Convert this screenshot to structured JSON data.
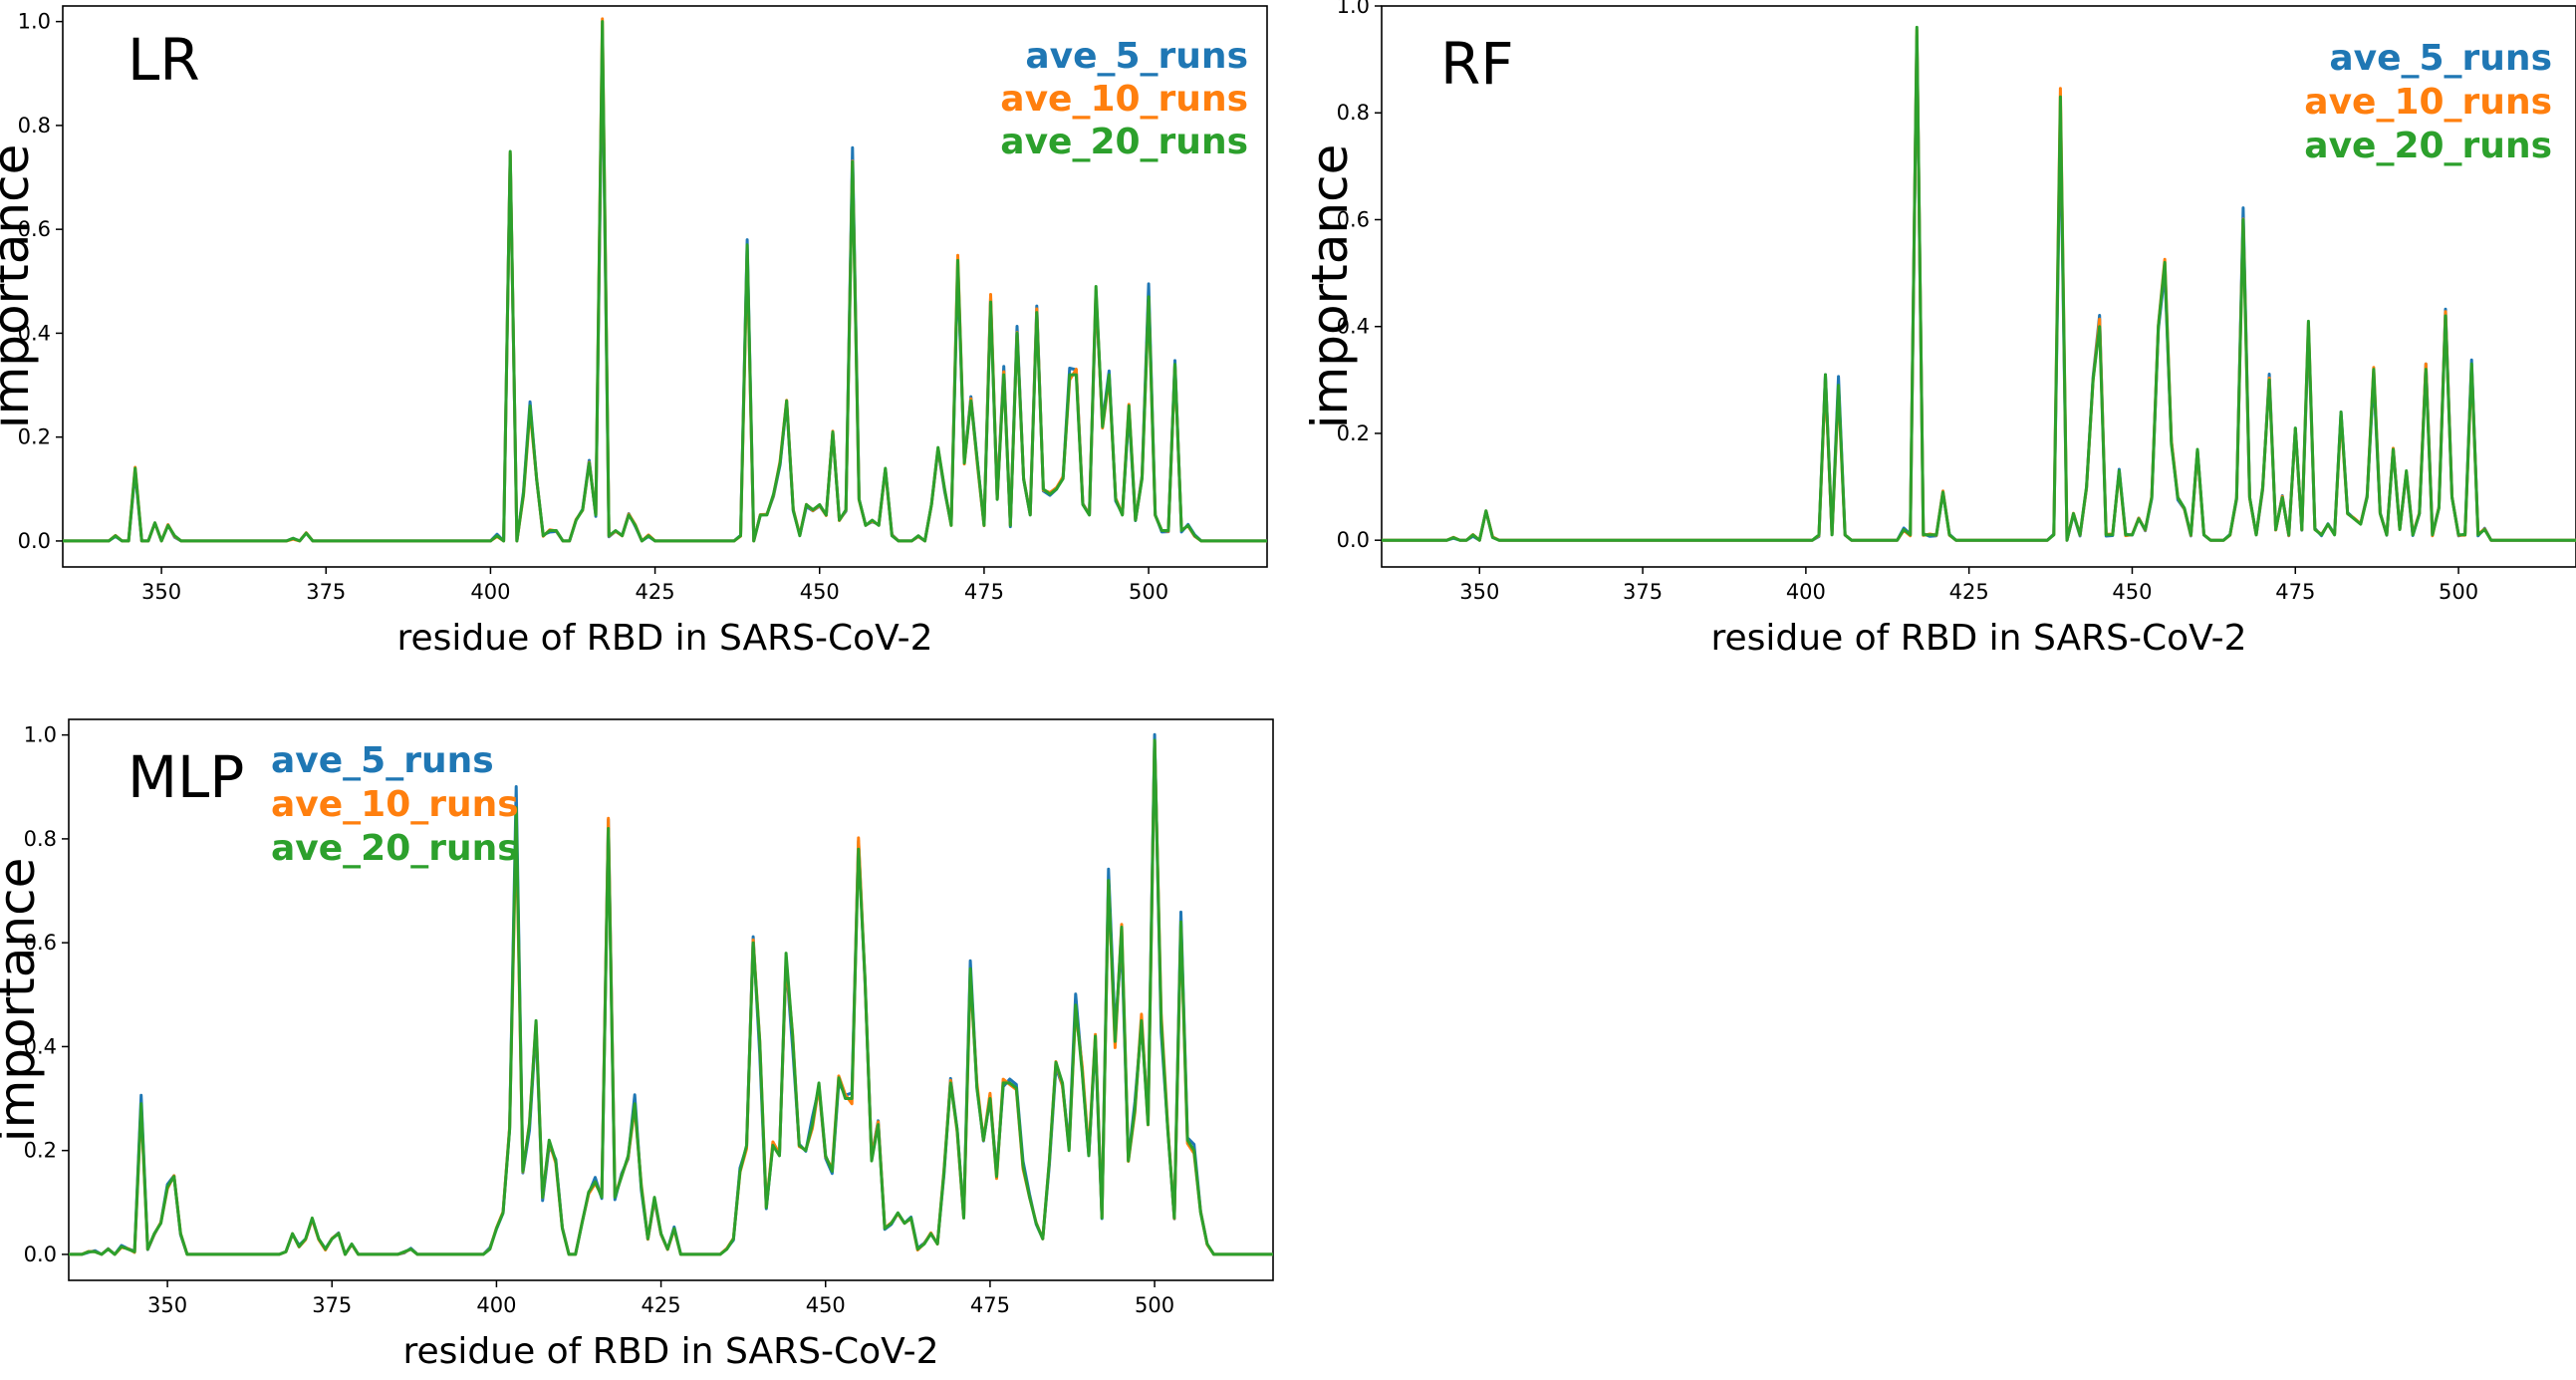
{
  "colors": {
    "ave_5_runs": "#1f77b4",
    "ave_10_runs": "#ff7f0e",
    "ave_20_runs": "#2ca02c"
  },
  "chart_data": [
    {
      "id": "lr",
      "type": "line",
      "title": "LR",
      "xlabel": "residue of RBD in SARS-CoV-2",
      "ylabel": "importance",
      "xlim": [
        335,
        518
      ],
      "ylim": [
        -0.05,
        1.03
      ],
      "xticks": [
        350,
        375,
        400,
        425,
        450,
        475,
        500
      ],
      "yticks": [
        0.0,
        0.2,
        0.4,
        0.6,
        0.8,
        1.0
      ],
      "legend_position": "top-right",
      "baseline_peaks": [
        [
          343,
          0.01
        ],
        [
          346,
          0.14
        ],
        [
          349,
          0.035
        ],
        [
          351,
          0.03
        ],
        [
          352,
          0.01
        ],
        [
          370,
          0.005
        ],
        [
          372,
          0.015
        ],
        [
          401,
          0.01
        ],
        [
          403,
          0.75
        ],
        [
          405,
          0.09
        ],
        [
          406,
          0.26
        ],
        [
          407,
          0.12
        ],
        [
          408,
          0.01
        ],
        [
          409,
          0.02
        ],
        [
          410,
          0.02
        ],
        [
          413,
          0.04
        ],
        [
          414,
          0.06
        ],
        [
          415,
          0.15
        ],
        [
          416,
          0.05
        ],
        [
          417,
          1.0
        ],
        [
          418,
          0.01
        ],
        [
          419,
          0.02
        ],
        [
          420,
          0.01
        ],
        [
          421,
          0.05
        ],
        [
          422,
          0.03
        ],
        [
          424,
          0.01
        ],
        [
          438,
          0.01
        ],
        [
          439,
          0.57
        ],
        [
          441,
          0.05
        ],
        [
          442,
          0.05
        ],
        [
          443,
          0.09
        ],
        [
          444,
          0.15
        ],
        [
          445,
          0.27
        ],
        [
          446,
          0.06
        ],
        [
          447,
          0.01
        ],
        [
          448,
          0.07
        ],
        [
          449,
          0.06
        ],
        [
          450,
          0.07
        ],
        [
          451,
          0.05
        ],
        [
          452,
          0.21
        ],
        [
          453,
          0.04
        ],
        [
          454,
          0.06
        ],
        [
          455,
          0.73
        ],
        [
          456,
          0.08
        ],
        [
          457,
          0.03
        ],
        [
          458,
          0.04
        ],
        [
          459,
          0.03
        ],
        [
          460,
          0.14
        ],
        [
          461,
          0.01
        ],
        [
          465,
          0.01
        ],
        [
          467,
          0.07
        ],
        [
          468,
          0.18
        ],
        [
          469,
          0.1
        ],
        [
          470,
          0.03
        ],
        [
          471,
          0.54
        ],
        [
          472,
          0.15
        ],
        [
          473,
          0.27
        ],
        [
          474,
          0.15
        ],
        [
          475,
          0.03
        ],
        [
          476,
          0.46
        ],
        [
          477,
          0.08
        ],
        [
          478,
          0.32
        ],
        [
          479,
          0.03
        ],
        [
          480,
          0.4
        ],
        [
          481,
          0.12
        ],
        [
          482,
          0.05
        ],
        [
          483,
          0.44
        ],
        [
          484,
          0.1
        ],
        [
          485,
          0.09
        ],
        [
          486,
          0.1
        ],
        [
          487,
          0.12
        ],
        [
          488,
          0.32
        ],
        [
          489,
          0.32
        ],
        [
          490,
          0.07
        ],
        [
          491,
          0.05
        ],
        [
          492,
          0.49
        ],
        [
          493,
          0.22
        ],
        [
          494,
          0.32
        ],
        [
          495,
          0.08
        ],
        [
          496,
          0.05
        ],
        [
          497,
          0.26
        ],
        [
          498,
          0.04
        ],
        [
          499,
          0.12
        ],
        [
          500,
          0.47
        ],
        [
          501,
          0.05
        ],
        [
          502,
          0.02
        ],
        [
          503,
          0.02
        ],
        [
          504,
          0.34
        ],
        [
          505,
          0.02
        ],
        [
          506,
          0.03
        ],
        [
          507,
          0.01
        ]
      ],
      "series": [
        {
          "name": "ave_5_runs",
          "color": "#1f77b4"
        },
        {
          "name": "ave_10_runs",
          "color": "#ff7f0e"
        },
        {
          "name": "ave_20_runs",
          "color": "#2ca02c"
        }
      ]
    },
    {
      "id": "rf",
      "type": "line",
      "title": "RF",
      "xlabel": "residue of RBD in SARS-CoV-2",
      "ylabel": "importance",
      "xlim": [
        335,
        518
      ],
      "ylim": [
        -0.05,
        1.0
      ],
      "xticks": [
        350,
        375,
        400,
        425,
        450,
        475,
        500
      ],
      "yticks": [
        0.0,
        0.2,
        0.4,
        0.6,
        0.8,
        1.0
      ],
      "legend_position": "top-right",
      "baseline_peaks": [
        [
          346,
          0.005
        ],
        [
          349,
          0.01
        ],
        [
          351,
          0.055
        ],
        [
          352,
          0.005
        ],
        [
          402,
          0.01
        ],
        [
          403,
          0.31
        ],
        [
          404,
          0.01
        ],
        [
          405,
          0.29
        ],
        [
          406,
          0.01
        ],
        [
          415,
          0.02
        ],
        [
          416,
          0.01
        ],
        [
          417,
          0.96
        ],
        [
          418,
          0.01
        ],
        [
          419,
          0.01
        ],
        [
          420,
          0.01
        ],
        [
          421,
          0.09
        ],
        [
          422,
          0.01
        ],
        [
          438,
          0.01
        ],
        [
          439,
          0.83
        ],
        [
          441,
          0.05
        ],
        [
          442,
          0.01
        ],
        [
          443,
          0.1
        ],
        [
          444,
          0.3
        ],
        [
          445,
          0.4
        ],
        [
          446,
          0.01
        ],
        [
          447,
          0.01
        ],
        [
          448,
          0.13
        ],
        [
          449,
          0.01
        ],
        [
          450,
          0.01
        ],
        [
          451,
          0.04
        ],
        [
          452,
          0.02
        ],
        [
          453,
          0.08
        ],
        [
          454,
          0.4
        ],
        [
          455,
          0.52
        ],
        [
          456,
          0.18
        ],
        [
          457,
          0.08
        ],
        [
          458,
          0.06
        ],
        [
          459,
          0.01
        ],
        [
          460,
          0.17
        ],
        [
          461,
          0.01
        ],
        [
          465,
          0.01
        ],
        [
          466,
          0.08
        ],
        [
          467,
          0.6
        ],
        [
          468,
          0.08
        ],
        [
          469,
          0.01
        ],
        [
          470,
          0.1
        ],
        [
          471,
          0.3
        ],
        [
          472,
          0.02
        ],
        [
          473,
          0.08
        ],
        [
          474,
          0.01
        ],
        [
          475,
          0.21
        ],
        [
          476,
          0.02
        ],
        [
          477,
          0.41
        ],
        [
          478,
          0.02
        ],
        [
          479,
          0.01
        ],
        [
          480,
          0.03
        ],
        [
          481,
          0.01
        ],
        [
          482,
          0.24
        ],
        [
          483,
          0.05
        ],
        [
          484,
          0.04
        ],
        [
          485,
          0.03
        ],
        [
          486,
          0.08
        ],
        [
          487,
          0.32
        ],
        [
          488,
          0.05
        ],
        [
          489,
          0.01
        ],
        [
          490,
          0.17
        ],
        [
          491,
          0.02
        ],
        [
          492,
          0.13
        ],
        [
          493,
          0.01
        ],
        [
          494,
          0.05
        ],
        [
          495,
          0.32
        ],
        [
          496,
          0.01
        ],
        [
          497,
          0.06
        ],
        [
          498,
          0.42
        ],
        [
          499,
          0.08
        ],
        [
          500,
          0.01
        ],
        [
          501,
          0.01
        ],
        [
          502,
          0.33
        ],
        [
          503,
          0.01
        ],
        [
          504,
          0.02
        ],
        [
          505,
          0.0
        ]
      ],
      "series": [
        {
          "name": "ave_5_runs",
          "color": "#1f77b4"
        },
        {
          "name": "ave_10_runs",
          "color": "#ff7f0e"
        },
        {
          "name": "ave_20_runs",
          "color": "#2ca02c"
        }
      ]
    },
    {
      "id": "mlp",
      "type": "line",
      "title": "MLP",
      "xlabel": "residue of RBD in SARS-CoV-2",
      "ylabel": "importance",
      "xlim": [
        335,
        518
      ],
      "ylim": [
        -0.05,
        1.03
      ],
      "xticks": [
        350,
        375,
        400,
        425,
        450,
        475,
        500
      ],
      "yticks": [
        0.0,
        0.2,
        0.4,
        0.6,
        0.8,
        1.0
      ],
      "legend_position": "top-left",
      "baseline_peaks": [
        [
          338,
          0.005
        ],
        [
          339,
          0.005
        ],
        [
          340,
          0.0
        ],
        [
          341,
          0.01
        ],
        [
          342,
          0.0
        ],
        [
          343,
          0.015
        ],
        [
          344,
          0.01
        ],
        [
          345,
          0.005
        ],
        [
          346,
          0.29
        ],
        [
          347,
          0.01
        ],
        [
          348,
          0.04
        ],
        [
          349,
          0.06
        ],
        [
          350,
          0.13
        ],
        [
          351,
          0.15
        ],
        [
          352,
          0.04
        ],
        [
          353,
          0.0
        ],
        [
          368,
          0.005
        ],
        [
          369,
          0.04
        ],
        [
          370,
          0.015
        ],
        [
          371,
          0.03
        ],
        [
          372,
          0.07
        ],
        [
          373,
          0.03
        ],
        [
          374,
          0.01
        ],
        [
          375,
          0.03
        ],
        [
          376,
          0.04
        ],
        [
          377,
          0.0
        ],
        [
          378,
          0.02
        ],
        [
          379,
          0.0
        ],
        [
          386,
          0.005
        ],
        [
          387,
          0.01
        ],
        [
          388,
          0.0
        ],
        [
          399,
          0.01
        ],
        [
          400,
          0.05
        ],
        [
          401,
          0.08
        ],
        [
          402,
          0.24
        ],
        [
          403,
          0.86
        ],
        [
          404,
          0.16
        ],
        [
          405,
          0.25
        ],
        [
          406,
          0.45
        ],
        [
          407,
          0.11
        ],
        [
          408,
          0.22
        ],
        [
          409,
          0.18
        ],
        [
          410,
          0.05
        ],
        [
          411,
          0.0
        ],
        [
          412,
          0.0
        ],
        [
          413,
          0.06
        ],
        [
          414,
          0.12
        ],
        [
          415,
          0.14
        ],
        [
          416,
          0.11
        ],
        [
          417,
          0.82
        ],
        [
          418,
          0.11
        ],
        [
          419,
          0.15
        ],
        [
          420,
          0.19
        ],
        [
          421,
          0.29
        ],
        [
          422,
          0.13
        ],
        [
          423,
          0.03
        ],
        [
          424,
          0.11
        ],
        [
          425,
          0.04
        ],
        [
          426,
          0.01
        ],
        [
          427,
          0.05
        ],
        [
          428,
          0.0
        ],
        [
          435,
          0.01
        ],
        [
          436,
          0.03
        ],
        [
          437,
          0.16
        ],
        [
          438,
          0.21
        ],
        [
          439,
          0.6
        ],
        [
          440,
          0.41
        ],
        [
          441,
          0.09
        ],
        [
          442,
          0.21
        ],
        [
          443,
          0.19
        ],
        [
          444,
          0.58
        ],
        [
          445,
          0.42
        ],
        [
          446,
          0.21
        ],
        [
          447,
          0.2
        ],
        [
          448,
          0.25
        ],
        [
          449,
          0.33
        ],
        [
          450,
          0.19
        ],
        [
          451,
          0.16
        ],
        [
          452,
          0.34
        ],
        [
          453,
          0.3
        ],
        [
          454,
          0.3
        ],
        [
          455,
          0.78
        ],
        [
          456,
          0.53
        ],
        [
          457,
          0.18
        ],
        [
          458,
          0.25
        ],
        [
          459,
          0.05
        ],
        [
          460,
          0.06
        ],
        [
          461,
          0.08
        ],
        [
          462,
          0.06
        ],
        [
          463,
          0.07
        ],
        [
          464,
          0.01
        ],
        [
          465,
          0.02
        ],
        [
          466,
          0.04
        ],
        [
          467,
          0.02
        ],
        [
          468,
          0.16
        ],
        [
          469,
          0.33
        ],
        [
          470,
          0.24
        ],
        [
          471,
          0.07
        ],
        [
          472,
          0.55
        ],
        [
          473,
          0.32
        ],
        [
          474,
          0.22
        ],
        [
          475,
          0.3
        ],
        [
          476,
          0.15
        ],
        [
          477,
          0.33
        ],
        [
          478,
          0.33
        ],
        [
          479,
          0.32
        ],
        [
          480,
          0.17
        ],
        [
          481,
          0.11
        ],
        [
          482,
          0.06
        ],
        [
          483,
          0.03
        ],
        [
          484,
          0.18
        ],
        [
          485,
          0.37
        ],
        [
          486,
          0.33
        ],
        [
          487,
          0.2
        ],
        [
          488,
          0.48
        ],
        [
          489,
          0.35
        ],
        [
          490,
          0.19
        ],
        [
          491,
          0.42
        ],
        [
          492,
          0.07
        ],
        [
          493,
          0.72
        ],
        [
          494,
          0.41
        ],
        [
          495,
          0.63
        ],
        [
          496,
          0.18
        ],
        [
          497,
          0.28
        ],
        [
          498,
          0.45
        ],
        [
          499,
          0.25
        ],
        [
          500,
          0.99
        ],
        [
          501,
          0.45
        ],
        [
          502,
          0.24
        ],
        [
          503,
          0.07
        ],
        [
          504,
          0.64
        ],
        [
          505,
          0.22
        ],
        [
          506,
          0.2
        ],
        [
          507,
          0.08
        ],
        [
          508,
          0.02
        ],
        [
          509,
          0.0
        ]
      ],
      "series": [
        {
          "name": "ave_5_runs",
          "color": "#1f77b4"
        },
        {
          "name": "ave_10_runs",
          "color": "#ff7f0e"
        },
        {
          "name": "ave_20_runs",
          "color": "#2ca02c"
        }
      ]
    }
  ]
}
